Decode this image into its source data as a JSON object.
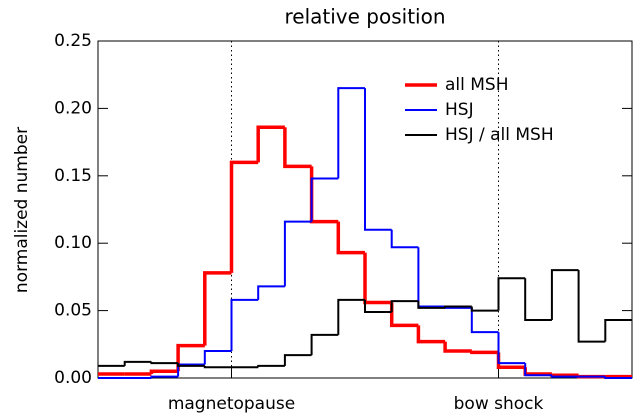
{
  "chart_data": {
    "type": "histogram",
    "title": "relative position",
    "ylabel": "normalized number",
    "bins": [
      -0.5,
      -0.4,
      -0.3,
      -0.2,
      -0.1,
      0,
      0.1,
      0.2,
      0.3,
      0.4,
      0.5,
      0.6,
      0.7,
      0.8,
      0.9,
      1,
      1.1,
      1.2,
      1.3,
      1.4,
      1.5
    ],
    "series": [
      {
        "name": "all MSH",
        "color": "#ff0000",
        "values": [
          0.003,
          0.003,
          0.005,
          0.024,
          0.078,
          0.16,
          0.186,
          0.157,
          0.116,
          0.093,
          0.056,
          0.039,
          0.027,
          0.02,
          0.019,
          0.008,
          0.003,
          0.002,
          0.001,
          0.001
        ]
      },
      {
        "name": "HSJ",
        "color": "#0000ff",
        "values": [
          0.0,
          0.0,
          0.001,
          0.01,
          0.02,
          0.058,
          0.068,
          0.116,
          0.148,
          0.215,
          0.11,
          0.097,
          0.053,
          0.052,
          0.034,
          0.011,
          0.002,
          0.001,
          0.001,
          0.0
        ]
      },
      {
        "name": "HSJ / all MSH",
        "color": "#000000",
        "values": [
          0.009,
          0.012,
          0.011,
          0.009,
          0.008,
          0.008,
          0.009,
          0.017,
          0.032,
          0.058,
          0.049,
          0.057,
          0.052,
          0.053,
          0.05,
          0.074,
          0.043,
          0.08,
          0.027,
          0.043
        ]
      }
    ],
    "xlim": [
      -0.5,
      1.5
    ],
    "xticks": [
      {
        "value": 0,
        "label": "magnetopause"
      },
      {
        "value": 1,
        "label": "bow shock"
      }
    ],
    "ylim": [
      0,
      0.25
    ],
    "yticks": [
      {
        "value": 0,
        "label": "0.00"
      },
      {
        "value": 0.05,
        "label": "0.05"
      },
      {
        "value": 0.1,
        "label": "0.10"
      },
      {
        "value": 0.15,
        "label": "0.15"
      },
      {
        "value": 0.2,
        "label": "0.20"
      },
      {
        "value": 0.25,
        "label": "0.25"
      }
    ],
    "legend": "upper right"
  }
}
